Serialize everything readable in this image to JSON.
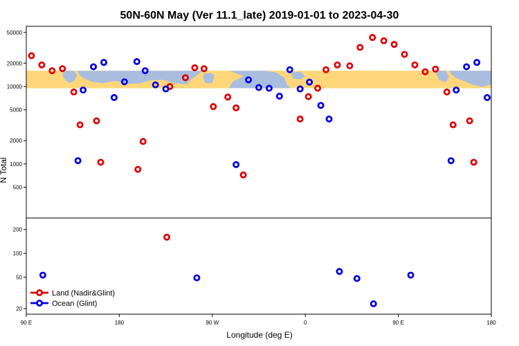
{
  "chart_data": {
    "type": "scatter",
    "title": "50N-60N May (Ver 11.1_late)   2019-01-01 to 2023-04-30",
    "xlabel": "Longitude (deg E)",
    "ylabel": "N Total",
    "x_ticks": [
      {
        "value": 90,
        "label": "90 E"
      },
      {
        "value": 180,
        "label": "180"
      },
      {
        "value": 270,
        "label": "90 W"
      },
      {
        "value": 360,
        "label": "0"
      },
      {
        "value": 450,
        "label": "90 E"
      },
      {
        "value": 540,
        "label": "180"
      }
    ],
    "xlim": [
      90,
      540
    ],
    "upper_panel": {
      "y_scale": "log",
      "ylim": [
        200,
        60000
      ],
      "y_ticks": [
        500,
        1000,
        2000,
        5000,
        10000,
        20000,
        50000
      ],
      "y_tick_labels": [
        "500",
        "1000",
        "2000",
        "5000",
        "10000",
        "20000",
        "50000"
      ],
      "map_band": {
        "lat_range": "50N-60N",
        "y_range": [
          9500,
          16000
        ],
        "land_color": "#FFD77A",
        "ocean_color": "#A9BDDE"
      },
      "series": [
        {
          "name": "Land (Nadir&Glint)",
          "color": "#E00000",
          "points": [
            {
              "x": 95,
              "y": 25000
            },
            {
              "x": 105,
              "y": 19000
            },
            {
              "x": 115,
              "y": 16000
            },
            {
              "x": 125,
              "y": 17000
            },
            {
              "x": 136,
              "y": 8500
            },
            {
              "x": 142,
              "y": 3200
            },
            {
              "x": 158,
              "y": 3600
            },
            {
              "x": 162,
              "y": 1050
            },
            {
              "x": 198,
              "y": 850
            },
            {
              "x": 203,
              "y": 1950
            },
            {
              "x": 229,
              "y": 10000
            },
            {
              "x": 244,
              "y": 13000
            },
            {
              "x": 253,
              "y": 17500
            },
            {
              "x": 262,
              "y": 17000
            },
            {
              "x": 271,
              "y": 5500
            },
            {
              "x": 285,
              "y": 7300
            },
            {
              "x": 293,
              "y": 5300
            },
            {
              "x": 300,
              "y": 720
            },
            {
              "x": 355,
              "y": 3800
            },
            {
              "x": 363,
              "y": 7400
            },
            {
              "x": 372,
              "y": 9500
            },
            {
              "x": 380,
              "y": 16500
            },
            {
              "x": 391,
              "y": 19000
            },
            {
              "x": 403,
              "y": 18500
            },
            {
              "x": 413,
              "y": 32000
            },
            {
              "x": 425,
              "y": 43000
            },
            {
              "x": 436,
              "y": 39000
            },
            {
              "x": 446,
              "y": 35000
            },
            {
              "x": 456,
              "y": 26000
            },
            {
              "x": 466,
              "y": 19000
            },
            {
              "x": 476,
              "y": 15500
            },
            {
              "x": 486,
              "y": 16800
            },
            {
              "x": 497,
              "y": 8500
            },
            {
              "x": 503,
              "y": 3200
            },
            {
              "x": 519,
              "y": 3600
            },
            {
              "x": 523,
              "y": 1050
            }
          ]
        },
        {
          "name": "Ocean (Glint)",
          "color": "#0000E0",
          "points": [
            {
              "x": 140,
              "y": 1100
            },
            {
              "x": 145,
              "y": 9000
            },
            {
              "x": 155,
              "y": 18000
            },
            {
              "x": 165,
              "y": 20500
            },
            {
              "x": 175,
              "y": 7200
            },
            {
              "x": 185,
              "y": 11500
            },
            {
              "x": 197,
              "y": 21000
            },
            {
              "x": 205,
              "y": 16000
            },
            {
              "x": 215,
              "y": 10500
            },
            {
              "x": 225,
              "y": 9300
            },
            {
              "x": 293,
              "y": 980
            },
            {
              "x": 305,
              "y": 12200
            },
            {
              "x": 315,
              "y": 9700
            },
            {
              "x": 325,
              "y": 9500
            },
            {
              "x": 335,
              "y": 7500
            },
            {
              "x": 345,
              "y": 16500
            },
            {
              "x": 355,
              "y": 9300
            },
            {
              "x": 364,
              "y": 11400
            },
            {
              "x": 375,
              "y": 5700
            },
            {
              "x": 383,
              "y": 3800
            },
            {
              "x": 501,
              "y": 1100
            },
            {
              "x": 506,
              "y": 9000
            },
            {
              "x": 516,
              "y": 18000
            },
            {
              "x": 526,
              "y": 20500
            },
            {
              "x": 536,
              "y": 7200
            }
          ]
        }
      ]
    },
    "lower_panel": {
      "y_scale": "log",
      "ylim": [
        17,
        280
      ],
      "y_ticks": [
        20,
        50,
        100,
        200
      ],
      "y_tick_labels": [
        "20",
        "50",
        "100",
        "200"
      ],
      "series": [
        {
          "name": "Land (Nadir&Glint)",
          "color": "#E00000",
          "points": [
            {
              "x": 226,
              "y": 160
            }
          ]
        },
        {
          "name": "Ocean (Glint)",
          "color": "#0000E0",
          "points": [
            {
              "x": 106,
              "y": 53
            },
            {
              "x": 255,
              "y": 49
            },
            {
              "x": 393,
              "y": 59
            },
            {
              "x": 410,
              "y": 48
            },
            {
              "x": 426,
              "y": 23
            },
            {
              "x": 462,
              "y": 53
            }
          ]
        }
      ]
    },
    "legend": {
      "placement": "bottom-left",
      "entries": [
        {
          "label": "Land (Nadir&Glint)",
          "color": "#E00000"
        },
        {
          "label": "Ocean (Glint)",
          "color": "#0000E0"
        }
      ]
    }
  }
}
